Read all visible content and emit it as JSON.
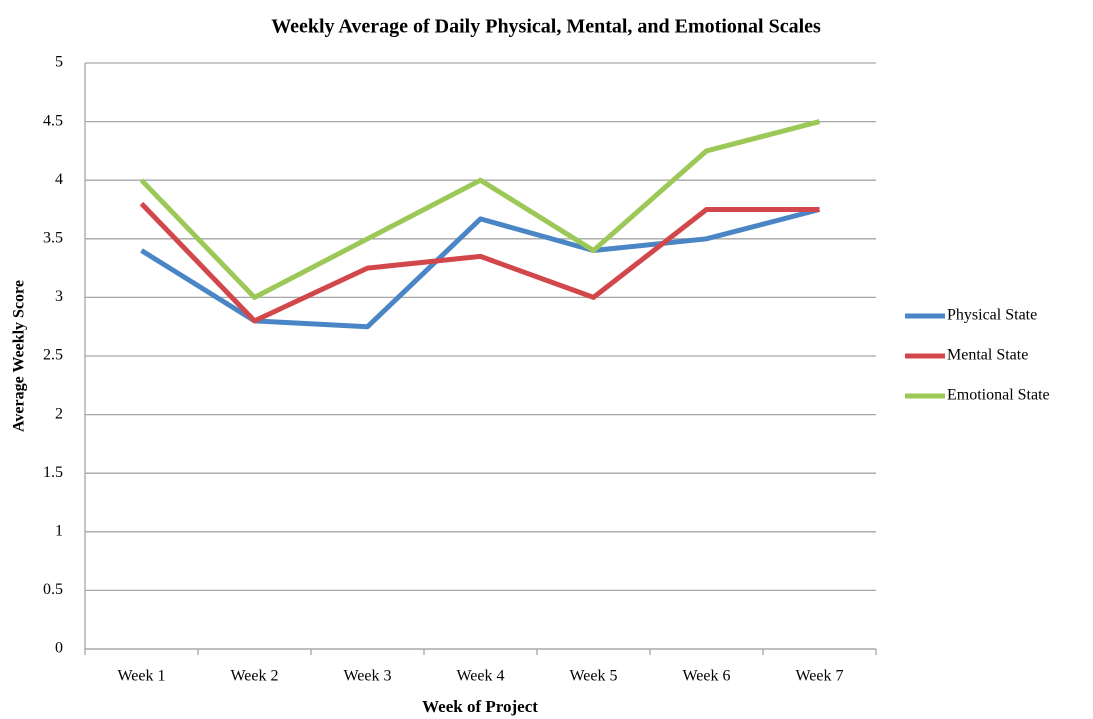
{
  "chart_data": {
    "type": "line",
    "title": "Weekly Average of Daily Physical, Mental, and Emotional Scales",
    "x_label": "Week of Project",
    "y_label": "Average Weekly Score",
    "categories": [
      "Week 1",
      "Week 2",
      "Week 3",
      "Week 4",
      "Week 5",
      "Week 6",
      "Week 7"
    ],
    "series": [
      {
        "name": "Physical State",
        "color": "#4a86c5",
        "values": [
          3.4,
          2.8,
          2.75,
          3.67,
          3.4,
          3.5,
          3.75
        ]
      },
      {
        "name": "Mental State",
        "color": "#d2474b",
        "values": [
          3.8,
          2.8,
          3.25,
          3.35,
          3.0,
          3.75,
          3.75
        ]
      },
      {
        "name": "Emotional State",
        "color": "#9bc857",
        "values": [
          4.0,
          3.0,
          3.5,
          4.0,
          3.4,
          4.25,
          4.5
        ]
      }
    ],
    "ylim": [
      0,
      5
    ],
    "yticks": [
      0,
      0.5,
      1,
      1.5,
      2,
      2.5,
      3,
      3.5,
      4,
      4.5,
      5
    ],
    "grid": true,
    "legend": "right"
  }
}
